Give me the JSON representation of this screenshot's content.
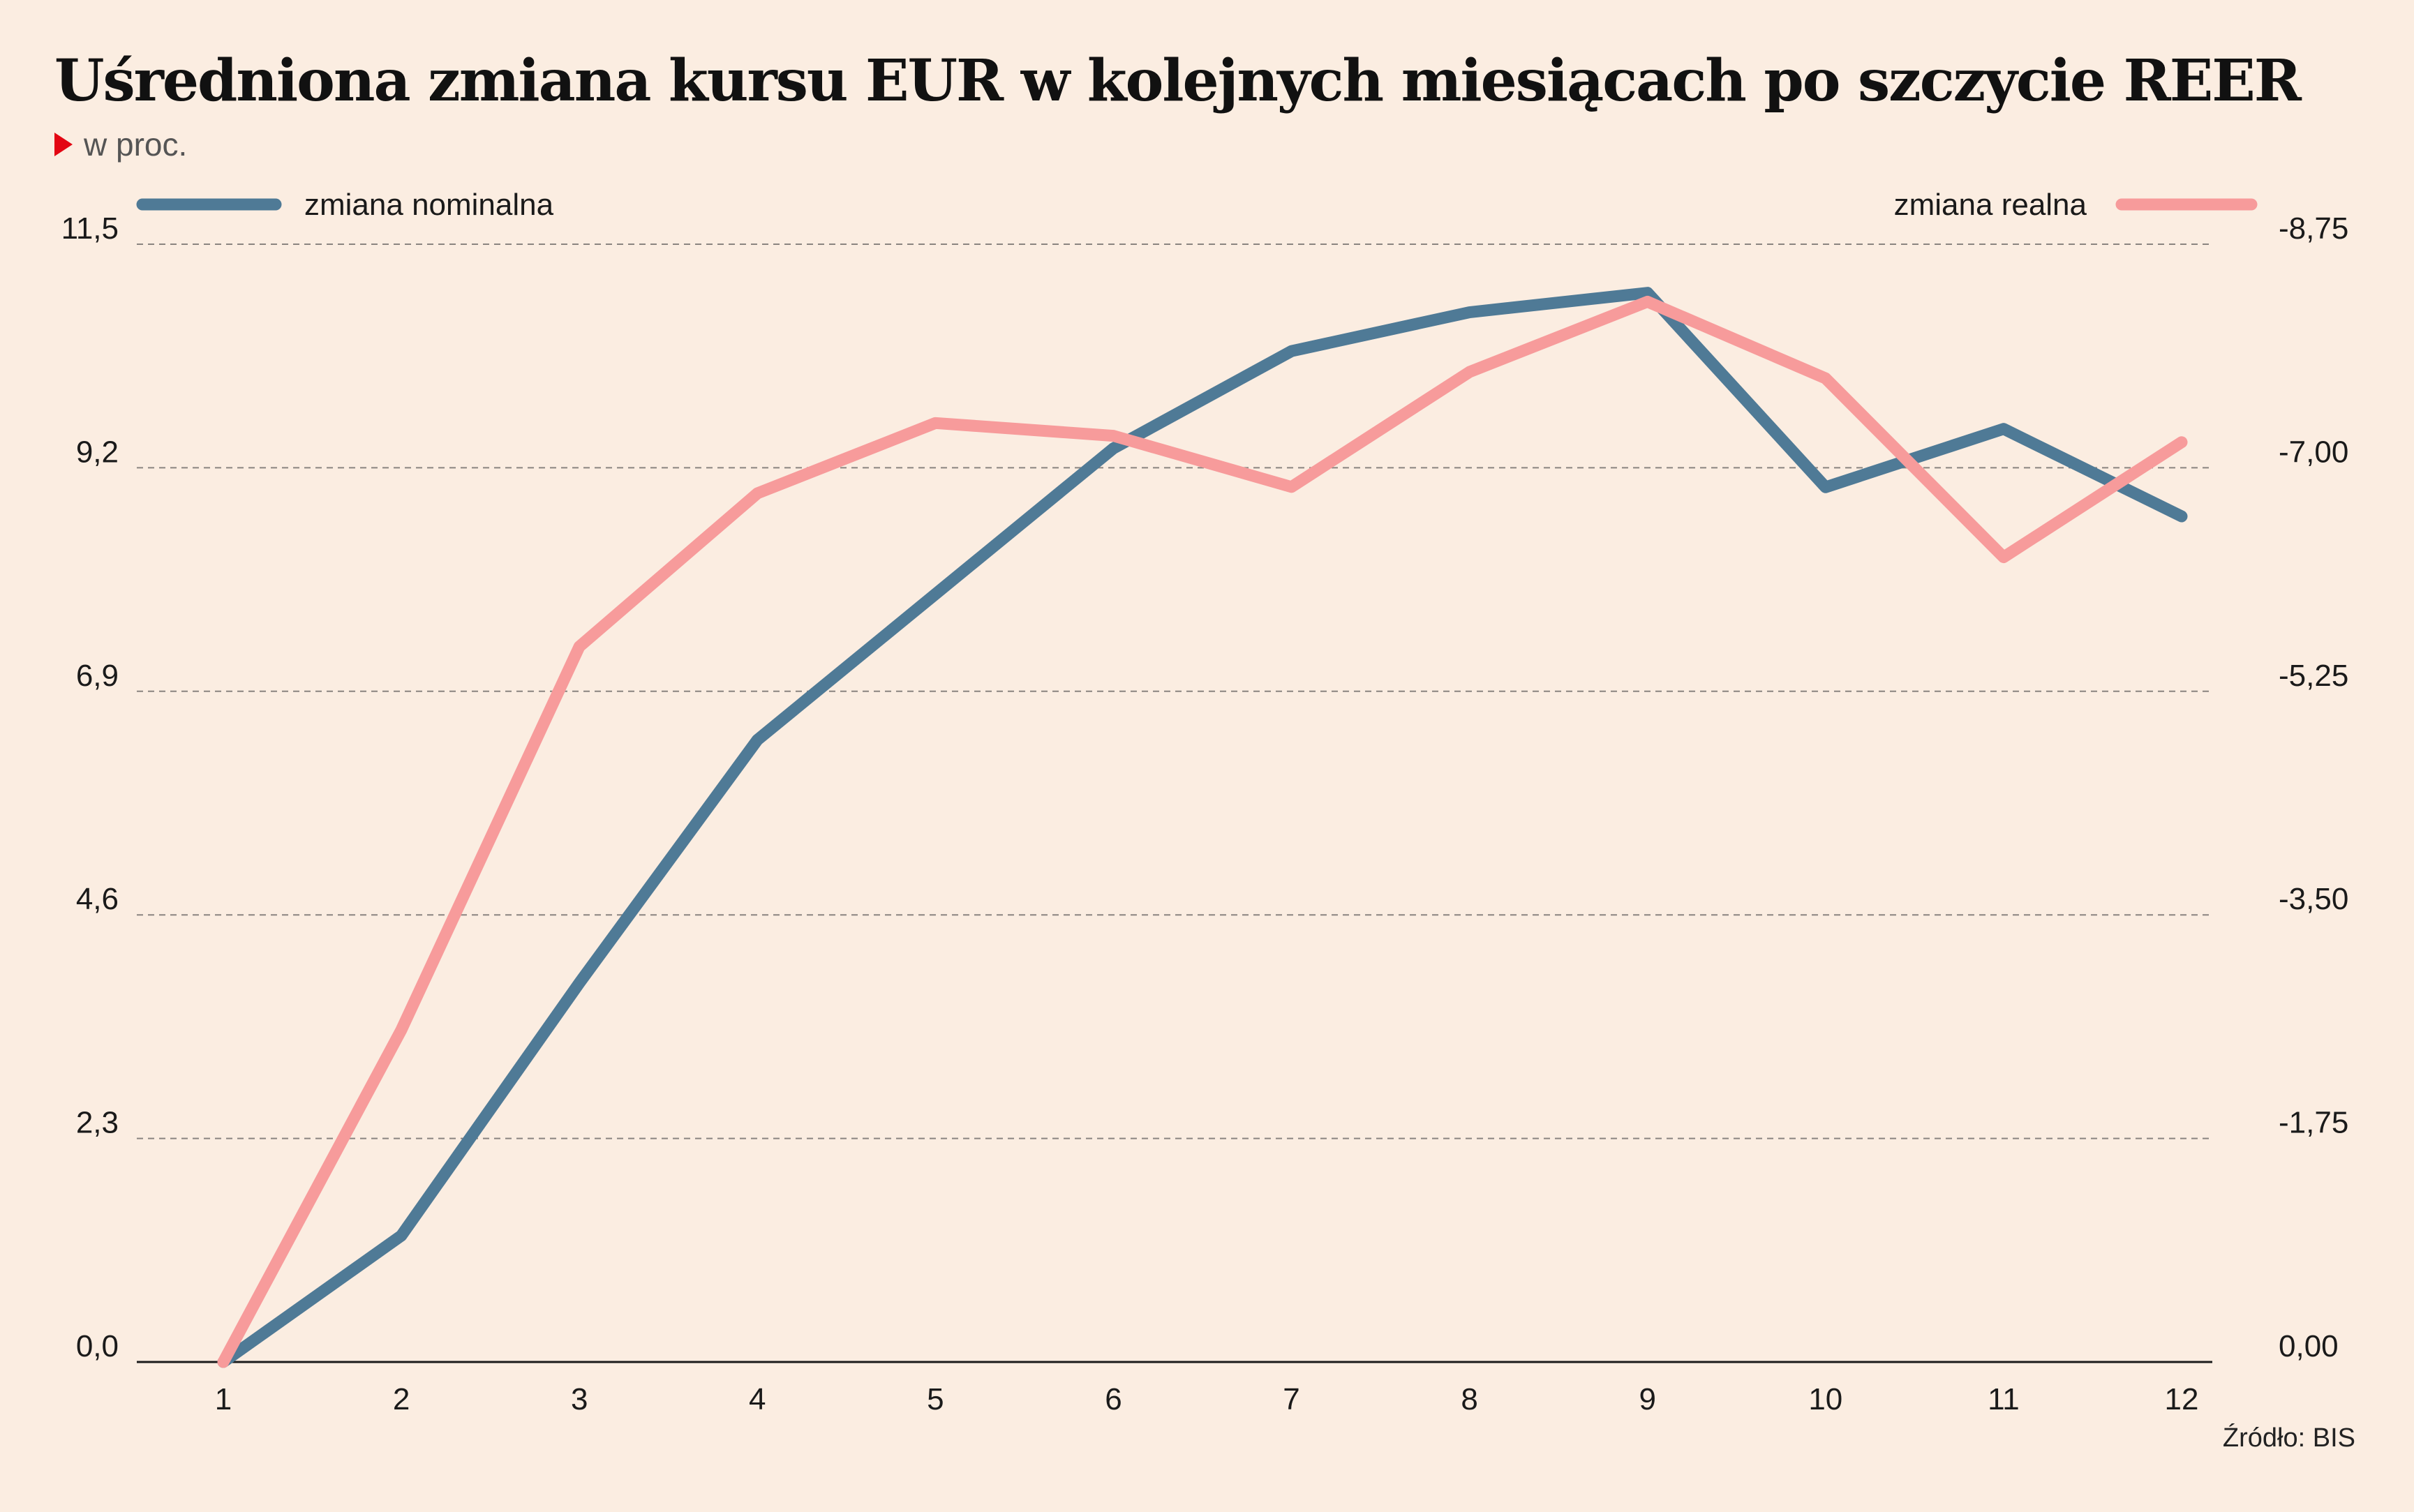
{
  "chart_data": {
    "type": "line",
    "title": "Uśredniona zmiana kursu EUR w kolejnych miesiącach po szczycie REER",
    "subtitle": "w proc.",
    "source": "Źródło: BIS",
    "x": [
      1,
      2,
      3,
      4,
      5,
      6,
      7,
      8,
      9,
      10,
      11,
      12
    ],
    "x_tick_labels": [
      "1",
      "2",
      "3",
      "4",
      "5",
      "6",
      "7",
      "8",
      "9",
      "10",
      "11",
      "12"
    ],
    "left_axis": {
      "ticks": [
        0.0,
        2.3,
        4.6,
        6.9,
        9.2,
        11.5
      ],
      "tick_labels": [
        "0,0",
        "2,3",
        "4,6",
        "6,9",
        "9,2",
        "11,5"
      ],
      "ylim": [
        0,
        11.5
      ]
    },
    "right_axis": {
      "ticks": [
        0,
        -1.75,
        -3.5,
        -5.25,
        -7.0,
        -8.75
      ],
      "tick_labels": [
        "0,00",
        "-1,75",
        "-3,50",
        "-5,25",
        "-7,00",
        "-8,75"
      ],
      "ylim": [
        0,
        -8.75
      ]
    },
    "grid": true,
    "legend_placement": "top",
    "series": [
      {
        "name": "zmiana nominalna",
        "axis": "left",
        "color": "#4f7a96",
        "values": [
          0.0,
          1.3,
          3.9,
          6.4,
          7.9,
          9.4,
          10.4,
          10.8,
          11.0,
          9.0,
          9.6,
          8.7
        ]
      },
      {
        "name": "zmiana realna",
        "axis": "right",
        "color": "#f79b9b",
        "values": [
          0.0,
          -2.6,
          -5.6,
          -6.8,
          -7.35,
          -7.25,
          -6.85,
          -7.75,
          -8.3,
          -7.7,
          -6.3,
          -7.2
        ]
      }
    ]
  }
}
